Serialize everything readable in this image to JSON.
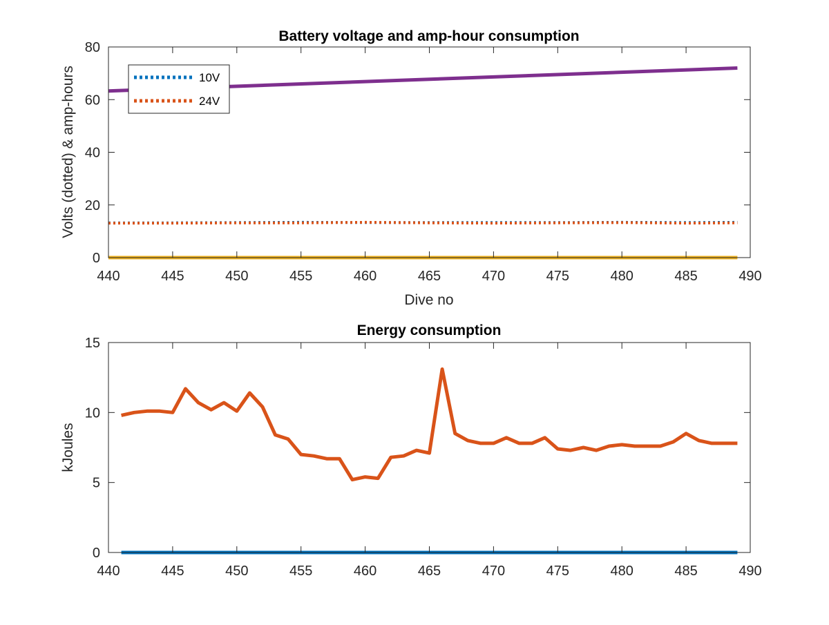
{
  "chart_data": [
    {
      "type": "line",
      "title": "Battery voltage and amp-hour consumption",
      "xlabel": "Dive no",
      "ylabel": "Volts (dotted) & amp-hours",
      "xlim": [
        440,
        490
      ],
      "ylim": [
        0,
        80
      ],
      "xticks": [
        440,
        445,
        450,
        455,
        460,
        465,
        470,
        475,
        480,
        485,
        490
      ],
      "yticks": [
        0,
        20,
        40,
        60,
        80
      ],
      "grid": false,
      "legend": {
        "placement": "top-left",
        "entries": [
          "10V",
          "24V"
        ]
      },
      "series": [
        {
          "name": "10V",
          "style": "dotted",
          "color": "#0072BD",
          "x": [
            440,
            445,
            450,
            455,
            460,
            465,
            470,
            475,
            480,
            485,
            489
          ],
          "y": [
            13.2,
            13.2,
            13.3,
            13.4,
            13.3,
            13.3,
            13.3,
            13.3,
            13.4,
            13.3,
            13.4
          ]
        },
        {
          "name": "24V",
          "style": "dotted",
          "color": "#D95319",
          "x": [
            440,
            445,
            450,
            455,
            460,
            465,
            470,
            475,
            480,
            485,
            489
          ],
          "y": [
            13.1,
            13.1,
            13.2,
            13.2,
            13.4,
            13.2,
            13.1,
            13.2,
            13.3,
            13.1,
            13.2
          ]
        },
        {
          "style": "solid",
          "color": "#7E2F8E",
          "x": [
            440,
            489
          ],
          "y": [
            63.3,
            72.0
          ]
        },
        {
          "style": "solid",
          "color": "#EDB120",
          "x": [
            440,
            489
          ],
          "y": [
            0,
            0
          ]
        }
      ]
    },
    {
      "type": "line",
      "title": "Energy consumption",
      "xlabel": "",
      "ylabel": "kJoules",
      "xlim": [
        440,
        490
      ],
      "ylim": [
        0,
        15
      ],
      "xticks": [
        440,
        445,
        450,
        455,
        460,
        465,
        470,
        475,
        480,
        485,
        490
      ],
      "yticks": [
        0,
        5,
        10,
        15
      ],
      "grid": false,
      "series": [
        {
          "style": "solid",
          "color": "#D95319",
          "x": [
            441,
            442,
            443,
            444,
            445,
            446,
            447,
            448,
            449,
            450,
            451,
            452,
            453,
            454,
            455,
            456,
            457,
            458,
            459,
            460,
            461,
            462,
            463,
            464,
            465,
            466,
            467,
            468,
            469,
            470,
            471,
            472,
            473,
            474,
            475,
            476,
            477,
            478,
            479,
            480,
            481,
            482,
            483,
            484,
            485,
            486,
            487,
            488,
            489
          ],
          "y": [
            9.8,
            10.0,
            10.1,
            10.1,
            10.0,
            11.7,
            10.7,
            10.2,
            10.7,
            10.1,
            11.4,
            10.4,
            8.4,
            8.1,
            7.0,
            6.9,
            6.7,
            6.7,
            5.2,
            5.4,
            5.3,
            6.8,
            6.9,
            7.3,
            7.1,
            13.1,
            8.5,
            8.0,
            7.8,
            7.8,
            8.2,
            7.8,
            7.8,
            8.2,
            7.4,
            7.3,
            7.5,
            7.3,
            7.6,
            7.7,
            7.6,
            7.6,
            7.6,
            7.9,
            8.5,
            8.0,
            7.8,
            7.8,
            7.8
          ]
        },
        {
          "style": "solid",
          "color": "#0072BD",
          "x": [
            441,
            489
          ],
          "y": [
            0,
            0
          ]
        }
      ]
    }
  ]
}
